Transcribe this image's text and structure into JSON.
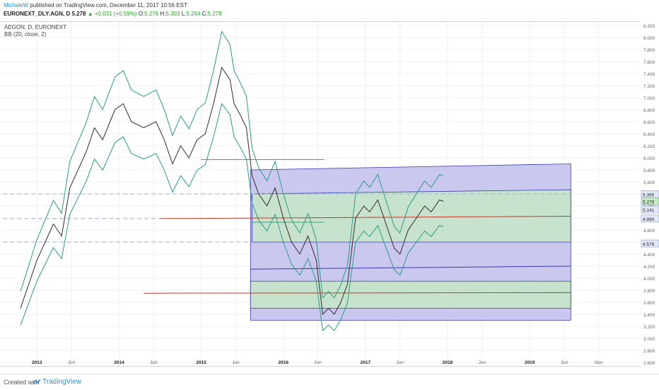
{
  "header": {
    "publisher": "MichaleW",
    "published_text": "published on TradingView.com, December 11, 2017 10:56 EST",
    "symbol": "EURONEXT_DLY:AGN, D",
    "last": "5.278",
    "change": "+0.031 (+0.59%)",
    "o_label": "O:",
    "o_value": "5.276",
    "h_label": "H:",
    "h_value": "5.303",
    "l_label": "L:",
    "l_value": "5.264",
    "c_label": "C:",
    "c_value": "5.278"
  },
  "legend": {
    "instrument": "AEGON, D, EURONEXT",
    "indicator": "BB (20, close, 2)"
  },
  "footer": {
    "created_with": "Created with",
    "brand": "TradingView"
  },
  "chart_data": {
    "type": "line",
    "title": "AEGON, D, EURONEXT",
    "indicator": "BB (20, close, 2)",
    "ylim": [
      2.6,
      8.2
    ],
    "y_ticks": [
      "8.200",
      "8.000",
      "7.800",
      "7.600",
      "7.400",
      "7.200",
      "7.000",
      "6.800",
      "6.600",
      "6.400",
      "6.200",
      "6.000",
      "5.800",
      "5.600",
      "5.400",
      "5.200",
      "5.000",
      "4.800",
      "4.600",
      "4.400",
      "4.200",
      "4.000",
      "3.800",
      "3.600",
      "3.400",
      "3.200",
      "3.000",
      "2.800",
      "2.600"
    ],
    "x_ticks": [
      "2013",
      "Jun",
      "2014",
      "Jun",
      "2015",
      "Jun",
      "2016",
      "Jun",
      "2017",
      "Jun",
      "2018",
      "Jun",
      "2019",
      "Jun",
      "Nov"
    ],
    "price_labels": [
      {
        "text": "5.395",
        "color": "#e4e9f7"
      },
      {
        "text": "5.278",
        "color": "#c5ecc3"
      },
      {
        "text": "5.141",
        "color": "#e4e9f7"
      },
      {
        "text": "4.990",
        "color": "#e4e9f7"
      },
      {
        "text": "4.576",
        "color": "#e4e9f7"
      }
    ],
    "price_series": [
      {
        "t": 2012.8,
        "v": 3.5
      },
      {
        "t": 2012.9,
        "v": 3.9
      },
      {
        "t": 2013.0,
        "v": 4.3
      },
      {
        "t": 2013.1,
        "v": 4.6
      },
      {
        "t": 2013.2,
        "v": 4.9
      },
      {
        "t": 2013.3,
        "v": 4.7
      },
      {
        "t": 2013.4,
        "v": 5.5
      },
      {
        "t": 2013.5,
        "v": 5.8
      },
      {
        "t": 2013.6,
        "v": 6.1
      },
      {
        "t": 2013.7,
        "v": 6.5
      },
      {
        "t": 2013.8,
        "v": 6.3
      },
      {
        "t": 2013.95,
        "v": 6.8
      },
      {
        "t": 2014.05,
        "v": 6.9
      },
      {
        "t": 2014.15,
        "v": 6.6
      },
      {
        "t": 2014.3,
        "v": 6.5
      },
      {
        "t": 2014.45,
        "v": 6.6
      },
      {
        "t": 2014.55,
        "v": 6.3
      },
      {
        "t": 2014.65,
        "v": 5.9
      },
      {
        "t": 2014.75,
        "v": 6.2
      },
      {
        "t": 2014.85,
        "v": 6.0
      },
      {
        "t": 2014.95,
        "v": 6.3
      },
      {
        "t": 2015.05,
        "v": 6.4
      },
      {
        "t": 2015.15,
        "v": 6.9
      },
      {
        "t": 2015.25,
        "v": 7.5
      },
      {
        "t": 2015.35,
        "v": 7.3
      },
      {
        "t": 2015.4,
        "v": 6.9
      },
      {
        "t": 2015.48,
        "v": 6.7
      },
      {
        "t": 2015.55,
        "v": 6.5
      },
      {
        "t": 2015.62,
        "v": 5.7
      },
      {
        "t": 2015.7,
        "v": 5.4
      },
      {
        "t": 2015.8,
        "v": 5.2
      },
      {
        "t": 2015.9,
        "v": 5.5
      },
      {
        "t": 2016.0,
        "v": 5.0
      },
      {
        "t": 2016.1,
        "v": 4.6
      },
      {
        "t": 2016.2,
        "v": 4.4
      },
      {
        "t": 2016.3,
        "v": 4.7
      },
      {
        "t": 2016.4,
        "v": 4.3
      },
      {
        "t": 2016.48,
        "v": 3.4
      },
      {
        "t": 2016.55,
        "v": 3.5
      },
      {
        "t": 2016.62,
        "v": 3.4
      },
      {
        "t": 2016.7,
        "v": 3.6
      },
      {
        "t": 2016.78,
        "v": 3.9
      },
      {
        "t": 2016.88,
        "v": 5.0
      },
      {
        "t": 2016.98,
        "v": 5.2
      },
      {
        "t": 2017.05,
        "v": 5.1
      },
      {
        "t": 2017.15,
        "v": 5.3
      },
      {
        "t": 2017.25,
        "v": 4.9
      },
      {
        "t": 2017.35,
        "v": 4.5
      },
      {
        "t": 2017.42,
        "v": 4.4
      },
      {
        "t": 2017.52,
        "v": 4.8
      },
      {
        "t": 2017.62,
        "v": 5.0
      },
      {
        "t": 2017.72,
        "v": 5.2
      },
      {
        "t": 2017.8,
        "v": 5.1
      },
      {
        "t": 2017.9,
        "v": 5.3
      },
      {
        "t": 2017.95,
        "v": 5.278
      }
    ],
    "bb_band_pct": 0.08,
    "zones": [
      {
        "name": "",
        "t0": 2015.6,
        "t1": 2019.5,
        "y0": 3.3,
        "y1": 5.8,
        "y1_end": 5.9,
        "fill": "#b8b5ea"
      },
      {
        "name": "",
        "t0": 2015.62,
        "t1": 2019.5,
        "y0": 4.6,
        "y1": 5.4,
        "y1_end": 5.47,
        "fill": "#c5ecc3"
      },
      {
        "name": "",
        "t0": 2015.6,
        "t1": 2019.5,
        "y0": 3.5,
        "y1": 3.95,
        "fill": "#c5ecc3"
      },
      {
        "name": "",
        "t0": 2015.6,
        "t1": 2019.5,
        "y0": 4.15,
        "y1": 4.15,
        "y1_end": 4.2,
        "fill": "none",
        "line": "#3a3aaa"
      }
    ],
    "hlines": [
      {
        "y": 5.4,
        "t0": 2012.5,
        "t1": 2019.5,
        "color": "#9bb0d8",
        "dash": true
      },
      {
        "y": 4.99,
        "t0": 2012.5,
        "t1": 2014.5,
        "color": "#9bb0d8",
        "dash": true
      },
      {
        "y": 4.6,
        "t0": 2012.5,
        "t1": 2015.6,
        "color": "#9bb0d8",
        "dash": true
      },
      {
        "y": 4.99,
        "t0": 2014.5,
        "t1": 2019.5,
        "y_end": 5.03,
        "color": "#c0392b",
        "dash": false
      },
      {
        "y": 3.75,
        "t0": 2014.3,
        "t1": 2019.5,
        "y_end": 3.76,
        "color": "#c0392b",
        "dash": false
      },
      {
        "y": 5.97,
        "t0": 2015.0,
        "t1": 2016.5,
        "color": "#3aa87a",
        "dash": false
      },
      {
        "y": 4.93,
        "t0": 2015.6,
        "t1": 2016.5,
        "color": "#3aa87a",
        "dash": false
      }
    ]
  }
}
